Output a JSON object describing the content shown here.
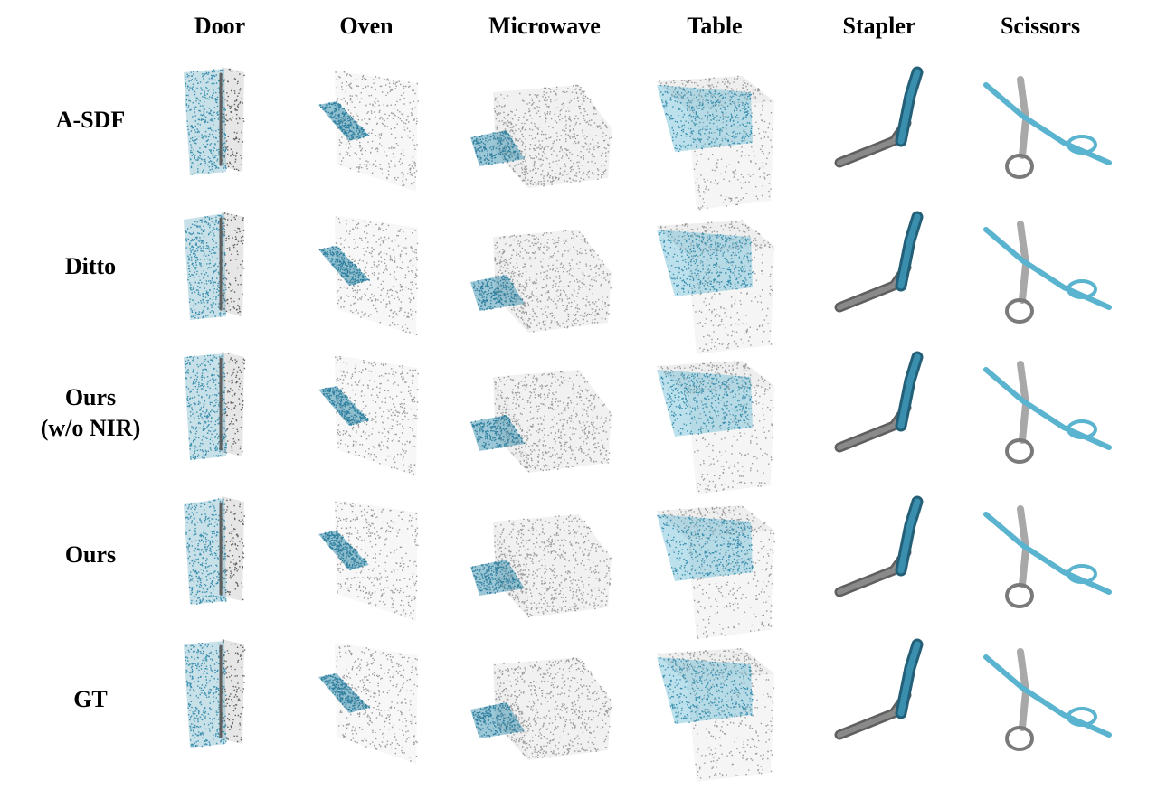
{
  "figure": {
    "columns": [
      "Door",
      "Oven",
      "Microwave",
      "Table",
      "Stapler",
      "Scissors"
    ],
    "rows": [
      {
        "label_lines": [
          "A-SDF"
        ]
      },
      {
        "label_lines": [
          "Ditto"
        ]
      },
      {
        "label_lines": [
          "Ours",
          "(w/o NIR)"
        ]
      },
      {
        "label_lines": [
          "Ours"
        ]
      },
      {
        "label_lines": [
          "GT"
        ]
      }
    ]
  },
  "colors": {
    "moving_part": "#3a8fae",
    "moving_part_light": "#5bb4cf",
    "static_part": "#9a9a9a",
    "static_part_dark": "#5f5f5f",
    "text": "#000000"
  }
}
